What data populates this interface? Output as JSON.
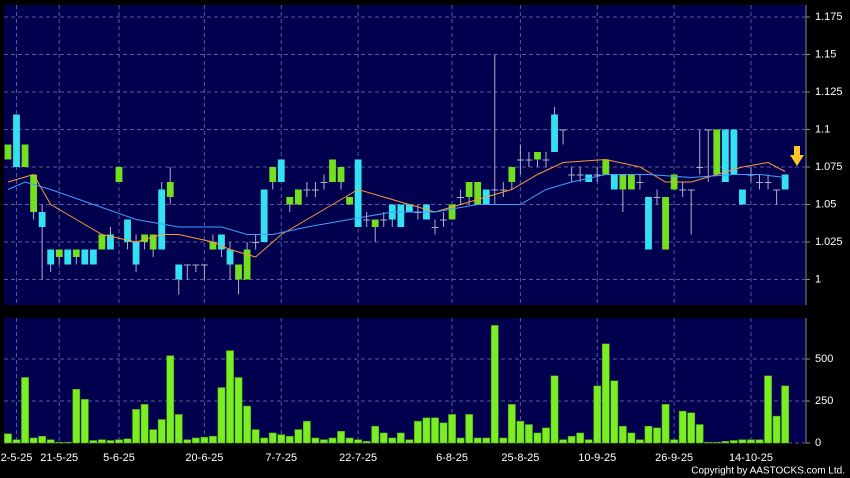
{
  "chart_data": [
    {
      "type": "candlestick",
      "open": [
        1.08,
        1.11,
        1.075,
        1.045,
        1.045,
        1.02,
        1.015,
        1.02,
        1.015,
        1.02,
        1.02,
        1.02,
        1.03,
        1.065,
        1.04,
        1.025,
        1.025,
        1.02,
        1.06,
        1.055,
        1.01,
        1.01,
        1.01,
        1.01,
        1.02,
        1.03,
        1.02,
        1.0,
        1.0,
        1.025,
        1.06,
        1.065,
        1.08,
        1.05,
        1.05,
        1.06,
        1.06,
        1.065,
        1.065,
        1.065,
        1.05,
        1.08,
        1.04,
        1.035,
        1.04,
        1.05,
        1.05,
        1.05,
        1.045,
        1.05,
        1.035,
        1.04,
        1.04,
        1.055,
        1.055,
        1.05,
        1.06,
        1.06,
        1.06,
        1.065,
        1.08,
        1.08,
        1.08,
        1.08,
        1.11,
        1.1,
        1.07,
        1.07,
        1.07,
        1.07,
        1.07,
        1.07,
        1.06,
        1.06,
        1.065,
        1.055,
        1.055,
        1.02,
        1.06,
        1.06,
        1.06,
        1.075,
        1.1,
        1.07,
        1.1,
        1.1,
        1.06,
        1.07,
        1.065,
        1.065,
        1.06,
        1.07
      ],
      "high": [
        1.09,
        1.11,
        1.09,
        1.07,
        1.05,
        1.02,
        1.02,
        1.02,
        1.02,
        1.02,
        1.02,
        1.03,
        1.035,
        1.075,
        1.04,
        1.03,
        1.03,
        1.03,
        1.065,
        1.075,
        1.01,
        1.01,
        1.01,
        1.01,
        1.03,
        1.03,
        1.025,
        1.01,
        1.025,
        1.03,
        1.06,
        1.075,
        1.08,
        1.055,
        1.06,
        1.065,
        1.065,
        1.07,
        1.08,
        1.075,
        1.055,
        1.08,
        1.045,
        1.04,
        1.045,
        1.05,
        1.05,
        1.05,
        1.05,
        1.05,
        1.04,
        1.045,
        1.05,
        1.06,
        1.065,
        1.065,
        1.06,
        1.15,
        1.065,
        1.075,
        1.09,
        1.085,
        1.085,
        1.085,
        1.115,
        1.1,
        1.075,
        1.075,
        1.07,
        1.075,
        1.08,
        1.07,
        1.07,
        1.07,
        1.07,
        1.055,
        1.06,
        1.055,
        1.07,
        1.065,
        1.06,
        1.1,
        1.1,
        1.1,
        1.1,
        1.1,
        1.06,
        1.075,
        1.07,
        1.07,
        1.06,
        1.07
      ],
      "low": [
        1.08,
        1.075,
        1.075,
        1.04,
        1.0,
        1.005,
        1.01,
        1.01,
        1.01,
        1.01,
        1.01,
        1.02,
        1.02,
        1.065,
        1.02,
        1.005,
        1.02,
        1.015,
        1.02,
        1.05,
        0.99,
        1.0,
        1.005,
        1.0,
        1.02,
        1.015,
        1.0,
        0.99,
        1.0,
        1.02,
        1.025,
        1.06,
        1.065,
        1.045,
        1.05,
        1.055,
        1.055,
        1.06,
        1.065,
        1.06,
        1.05,
        1.035,
        1.035,
        1.025,
        1.035,
        1.035,
        1.035,
        1.045,
        1.04,
        1.04,
        1.03,
        1.035,
        1.04,
        1.05,
        1.05,
        1.05,
        1.05,
        1.05,
        1.055,
        1.06,
        1.07,
        1.075,
        1.075,
        1.075,
        1.085,
        1.09,
        1.065,
        1.065,
        1.065,
        1.065,
        1.07,
        1.06,
        1.045,
        1.06,
        1.06,
        1.02,
        1.05,
        1.02,
        1.06,
        1.055,
        1.03,
        1.07,
        1.065,
        1.07,
        1.065,
        1.07,
        1.05,
        1.065,
        1.06,
        1.06,
        1.05,
        1.06
      ],
      "close": [
        1.09,
        1.075,
        1.09,
        1.07,
        1.035,
        1.01,
        1.02,
        1.01,
        1.02,
        1.01,
        1.01,
        1.03,
        1.02,
        1.075,
        1.025,
        1.01,
        1.03,
        1.03,
        1.02,
        1.065,
        1.0,
        1.01,
        1.01,
        1.01,
        1.025,
        1.02,
        1.01,
        1.01,
        1.02,
        1.025,
        1.025,
        1.075,
        1.065,
        1.055,
        1.06,
        1.06,
        1.06,
        1.065,
        1.08,
        1.075,
        1.055,
        1.035,
        1.04,
        1.04,
        1.04,
        1.04,
        1.035,
        1.045,
        1.045,
        1.04,
        1.035,
        1.04,
        1.05,
        1.055,
        1.065,
        1.065,
        1.05,
        1.06,
        1.06,
        1.075,
        1.08,
        1.08,
        1.085,
        1.08,
        1.085,
        1.1,
        1.07,
        1.07,
        1.065,
        1.07,
        1.08,
        1.06,
        1.07,
        1.07,
        1.065,
        1.02,
        1.055,
        1.055,
        1.07,
        1.06,
        1.06,
        1.075,
        1.1,
        1.1,
        1.065,
        1.07,
        1.05,
        1.07,
        1.065,
        1.065,
        1.06,
        1.06
      ],
      "up_color": "#72e01e",
      "down_color": "#33e2f0",
      "wick_color": "#b0b0c8",
      "series": [
        {
          "color": "#ff9933",
          "x": [
            0,
            3,
            5,
            8,
            11,
            15,
            18,
            20,
            24,
            26,
            29,
            32,
            35,
            38,
            41,
            44,
            47,
            50,
            53,
            56,
            59,
            62,
            65,
            70,
            74,
            77,
            80,
            83,
            86,
            89,
            91
          ],
          "values": [
            1.065,
            1.07,
            1.05,
            1.04,
            1.03,
            1.025,
            1.03,
            1.03,
            1.025,
            1.02,
            1.015,
            1.03,
            1.04,
            1.05,
            1.06,
            1.055,
            1.05,
            1.045,
            1.05,
            1.055,
            1.06,
            1.07,
            1.078,
            1.08,
            1.075,
            1.065,
            1.065,
            1.07,
            1.075,
            1.078,
            1.072
          ]
        },
        {
          "color": "#3fa0ff",
          "x": [
            0,
            2,
            5,
            10,
            15,
            20,
            25,
            28,
            31,
            35,
            40,
            45,
            50,
            55,
            60,
            63,
            66,
            70,
            75,
            80,
            85,
            88,
            91
          ],
          "values": [
            1.06,
            1.065,
            1.06,
            1.05,
            1.04,
            1.035,
            1.035,
            1.03,
            1.03,
            1.035,
            1.04,
            1.045,
            1.045,
            1.05,
            1.05,
            1.06,
            1.065,
            1.07,
            1.07,
            1.068,
            1.07,
            1.07,
            1.068
          ]
        }
      ],
      "ylim": [
        0.983,
        1.183
      ],
      "yticks": [
        1,
        1.025,
        1.05,
        1.075,
        1.1,
        1.125,
        1.15,
        1.175
      ],
      "grid": true
    },
    {
      "type": "bar",
      "categories": [
        null,
        "2-5-25",
        null,
        null,
        null,
        null,
        "21-5-25",
        null,
        null,
        null,
        null,
        null,
        null,
        "5-6-25",
        null,
        null,
        null,
        null,
        null,
        null,
        null,
        null,
        null,
        "20-6-25",
        null,
        null,
        null,
        null,
        null,
        null,
        null,
        null,
        "7-7-25",
        null,
        null,
        null,
        null,
        null,
        null,
        null,
        null,
        "22-7-25",
        null,
        null,
        null,
        null,
        null,
        null,
        null,
        null,
        null,
        null,
        "6-8-25",
        null,
        null,
        null,
        null,
        null,
        null,
        null,
        "25-8-25",
        null,
        null,
        null,
        null,
        null,
        null,
        null,
        null,
        "10-9-25",
        null,
        null,
        null,
        null,
        null,
        null,
        null,
        null,
        "26-9-25",
        null,
        null,
        null,
        null,
        null,
        null,
        null,
        null,
        "14-10-25",
        null,
        null,
        null,
        null
      ],
      "values": [
        55,
        20,
        390,
        30,
        40,
        20,
        5,
        5,
        320,
        260,
        15,
        20,
        15,
        20,
        25,
        200,
        230,
        80,
        140,
        520,
        170,
        20,
        30,
        35,
        40,
        330,
        550,
        390,
        220,
        80,
        30,
        60,
        50,
        40,
        80,
        130,
        30,
        20,
        30,
        70,
        30,
        20,
        10,
        100,
        60,
        30,
        60,
        20,
        130,
        150,
        150,
        120,
        170,
        30,
        170,
        30,
        30,
        700,
        30,
        230,
        130,
        110,
        60,
        90,
        400,
        20,
        40,
        60,
        20,
        340,
        590,
        370,
        100,
        60,
        20,
        100,
        90,
        230,
        20,
        190,
        180,
        110,
        5,
        5,
        10,
        15,
        20,
        20,
        20,
        400,
        160,
        340
      ],
      "color": "#7aee22",
      "ylim": [
        0,
        744
      ],
      "yticks": [
        0,
        250,
        500
      ],
      "grid": true
    }
  ],
  "footer": {
    "copyright": "Copyright by AASTOCKS.com Ltd."
  }
}
